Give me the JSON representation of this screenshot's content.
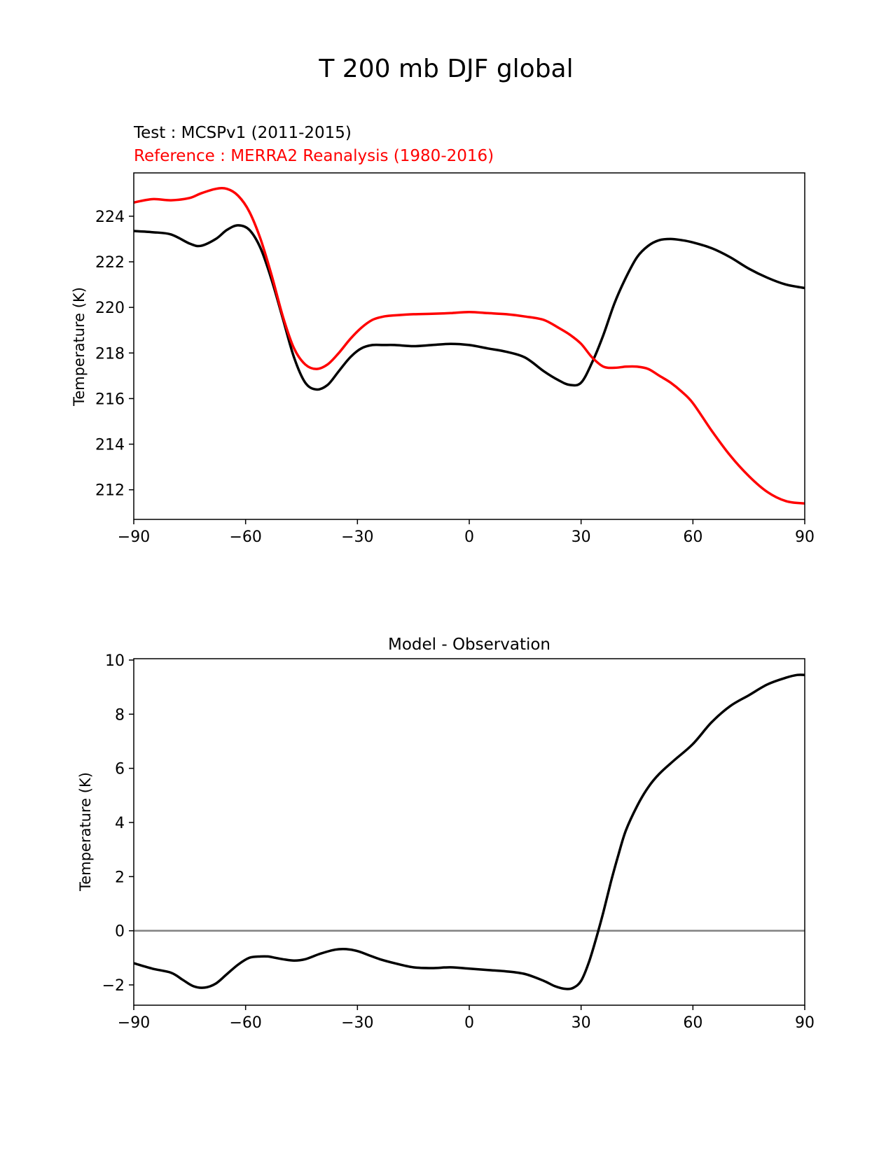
{
  "figure": {
    "title": "T 200 mb DJF global"
  },
  "chart_data": [
    {
      "type": "line",
      "title": "",
      "test_label": "Test : MCSPv1 (2011-2015)",
      "reference_label": "Reference : MERRA2 Reanalysis (1980-2016)",
      "xlabel": "",
      "ylabel": "Temperature (K)",
      "xlim": [
        -90,
        90
      ],
      "ylim": [
        210.7,
        225.9
      ],
      "xticks": [
        -90,
        -60,
        -30,
        0,
        30,
        60,
        90
      ],
      "xtick_labels": [
        "−90",
        "−60",
        "−30",
        "0",
        "30",
        "60",
        "90"
      ],
      "yticks": [
        212,
        214,
        216,
        218,
        220,
        222,
        224
      ],
      "yticks_labels": [
        "212",
        "214",
        "216",
        "218",
        "220",
        "222",
        "224"
      ],
      "grid": false,
      "series": [
        {
          "color": "#000000",
          "x": [
            -90,
            -85,
            -80,
            -75,
            -72,
            -68,
            -65,
            -62,
            -59,
            -56,
            -53,
            -50,
            -47,
            -44,
            -41,
            -38,
            -35,
            -32,
            -29,
            -26,
            -23,
            -20,
            -15,
            -10,
            -5,
            0,
            5,
            10,
            15,
            20,
            24,
            27,
            30,
            33,
            36,
            39,
            42,
            45,
            48,
            51,
            54,
            57,
            60,
            65,
            70,
            75,
            80,
            85,
            90
          ],
          "y": [
            223.35,
            223.3,
            223.2,
            222.8,
            222.7,
            223.0,
            223.4,
            223.6,
            223.4,
            222.6,
            221.2,
            219.5,
            217.8,
            216.7,
            216.4,
            216.6,
            217.2,
            217.8,
            218.2,
            218.35,
            218.35,
            218.35,
            218.3,
            218.35,
            218.4,
            218.35,
            218.2,
            218.05,
            217.8,
            217.2,
            216.8,
            216.6,
            216.7,
            217.6,
            218.8,
            220.2,
            221.3,
            222.2,
            222.7,
            222.95,
            223.0,
            222.95,
            222.85,
            222.6,
            222.2,
            221.7,
            221.3,
            221.0,
            220.85
          ]
        },
        {
          "color": "#ff0000",
          "x": [
            -90,
            -85,
            -80,
            -75,
            -72,
            -68,
            -65,
            -62,
            -59,
            -56,
            -53,
            -50,
            -47,
            -44,
            -41,
            -38,
            -35,
            -32,
            -29,
            -26,
            -23,
            -20,
            -15,
            -10,
            -5,
            0,
            5,
            10,
            15,
            20,
            24,
            27,
            30,
            33,
            36,
            39,
            42,
            45,
            48,
            51,
            54,
            57,
            60,
            65,
            70,
            75,
            80,
            85,
            90
          ],
          "y": [
            224.6,
            224.75,
            224.7,
            224.8,
            225.0,
            225.2,
            225.2,
            224.9,
            224.2,
            223.0,
            221.4,
            219.6,
            218.2,
            217.5,
            217.3,
            217.5,
            218.0,
            218.6,
            219.1,
            219.45,
            219.6,
            219.65,
            219.7,
            219.72,
            219.75,
            219.8,
            219.75,
            219.7,
            219.6,
            219.45,
            219.1,
            218.8,
            218.4,
            217.8,
            217.4,
            217.35,
            217.4,
            217.4,
            217.3,
            217.0,
            216.7,
            216.3,
            215.8,
            214.6,
            213.5,
            212.6,
            211.9,
            211.5,
            211.4
          ]
        }
      ]
    },
    {
      "type": "line",
      "title": "Model - Observation",
      "xlabel": "",
      "ylabel": "Temperature (K)",
      "xlim": [
        -90,
        90
      ],
      "ylim": [
        -2.75,
        10.05
      ],
      "xticks": [
        -90,
        -60,
        -30,
        0,
        30,
        60,
        90
      ],
      "xtick_labels": [
        "−90",
        "−60",
        "−30",
        "0",
        "30",
        "60",
        "90"
      ],
      "yticks": [
        -2,
        0,
        2,
        4,
        6,
        8,
        10
      ],
      "yticks_labels": [
        "−2",
        "0",
        "2",
        "4",
        "6",
        "8",
        "10"
      ],
      "grid": false,
      "zero_line": {
        "y": 0,
        "color": "#808080"
      },
      "series": [
        {
          "color": "#000000",
          "x": [
            -90,
            -85,
            -80,
            -77,
            -74,
            -71,
            -68,
            -65,
            -62,
            -59,
            -56,
            -54,
            -52,
            -50,
            -47,
            -44,
            -40,
            -36,
            -33,
            -30,
            -27,
            -24,
            -20,
            -15,
            -10,
            -5,
            0,
            5,
            10,
            15,
            20,
            23,
            26,
            28,
            30,
            32,
            34,
            36,
            38,
            40,
            42,
            45,
            48,
            51,
            55,
            60,
            65,
            70,
            75,
            80,
            85,
            88,
            90
          ],
          "y": [
            -1.2,
            -1.4,
            -1.55,
            -1.8,
            -2.05,
            -2.1,
            -1.95,
            -1.6,
            -1.25,
            -1.0,
            -0.95,
            -0.95,
            -1.0,
            -1.05,
            -1.1,
            -1.05,
            -0.85,
            -0.7,
            -0.68,
            -0.75,
            -0.9,
            -1.05,
            -1.2,
            -1.35,
            -1.38,
            -1.35,
            -1.4,
            -1.45,
            -1.5,
            -1.6,
            -1.85,
            -2.05,
            -2.15,
            -2.1,
            -1.85,
            -1.2,
            -0.3,
            0.7,
            1.8,
            2.8,
            3.7,
            4.6,
            5.3,
            5.8,
            6.3,
            6.9,
            7.7,
            8.3,
            8.7,
            9.1,
            9.35,
            9.45,
            9.45
          ]
        }
      ]
    }
  ]
}
